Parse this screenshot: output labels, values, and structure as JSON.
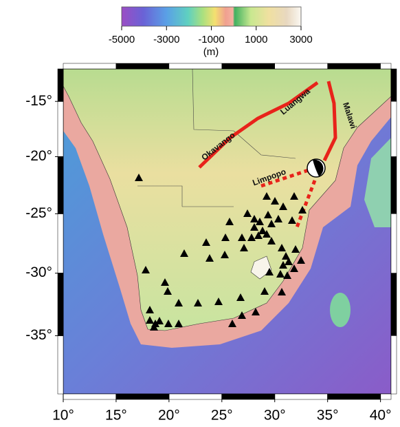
{
  "colorbar": {
    "lim": [
      -5000,
      3000
    ],
    "ticks": [
      -5000,
      -3000,
      -1000,
      1000,
      3000
    ],
    "unit": "(m)"
  },
  "map": {
    "xlim": [
      10,
      41
    ],
    "ylim": [
      -12,
      -39.4
    ],
    "xticks": [
      {
        "value": 10,
        "label": "10°"
      },
      {
        "value": 15,
        "label": "15°"
      },
      {
        "value": 20,
        "label": "20°"
      },
      {
        "value": 25,
        "label": "25°"
      },
      {
        "value": 30,
        "label": "30°"
      },
      {
        "value": 35,
        "label": "35°"
      },
      {
        "value": 40,
        "label": "40°"
      }
    ],
    "yticks": [
      {
        "value": -15,
        "label": "-15°"
      },
      {
        "value": -20,
        "label": "-20°"
      },
      {
        "value": -25,
        "label": "-25°"
      },
      {
        "value": -30,
        "label": "-30°"
      },
      {
        "value": -35,
        "label": "-35°"
      }
    ],
    "labels": {
      "okavango": "Okavango",
      "luangwa": "Luangwa",
      "malawi": "Malawi",
      "limpopo": "Limpopo"
    }
  }
}
